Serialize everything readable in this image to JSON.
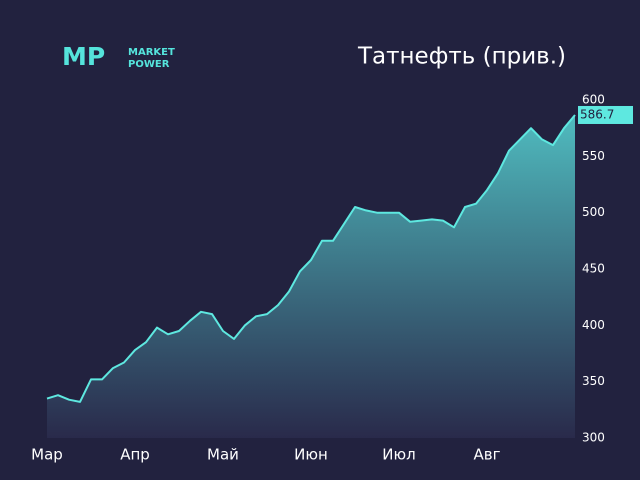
{
  "logo": {
    "mark": "MP",
    "line1": "MARKET",
    "line2": "POWER"
  },
  "chart_data": {
    "type": "area",
    "title": "Татнефть (прив.)",
    "categories": [
      "Мар",
      null,
      null,
      null,
      null,
      null,
      null,
      null,
      "Апр",
      null,
      null,
      null,
      null,
      null,
      null,
      null,
      "Май",
      null,
      null,
      null,
      null,
      null,
      null,
      null,
      "Июн",
      null,
      null,
      null,
      null,
      null,
      null,
      null,
      "Июл",
      null,
      null,
      null,
      null,
      null,
      null,
      null,
      "Авг",
      null,
      null,
      null,
      null,
      null,
      null,
      null,
      null
    ],
    "values": [
      335,
      338,
      334,
      332,
      352,
      352,
      362,
      367,
      378,
      385,
      398,
      392,
      395,
      404,
      412,
      410,
      395,
      388,
      400,
      408,
      410,
      418,
      430,
      448,
      458,
      475,
      475,
      490,
      505,
      502,
      500,
      500,
      500,
      492,
      493,
      494,
      493,
      487,
      505,
      508,
      520,
      535,
      555,
      565,
      575,
      565,
      560,
      575,
      586.7
    ],
    "color": "#5ee8e0",
    "ylim": [
      300,
      600
    ],
    "yticks": [
      300,
      350,
      400,
      450,
      500,
      550,
      600
    ],
    "grid": false
  }
}
